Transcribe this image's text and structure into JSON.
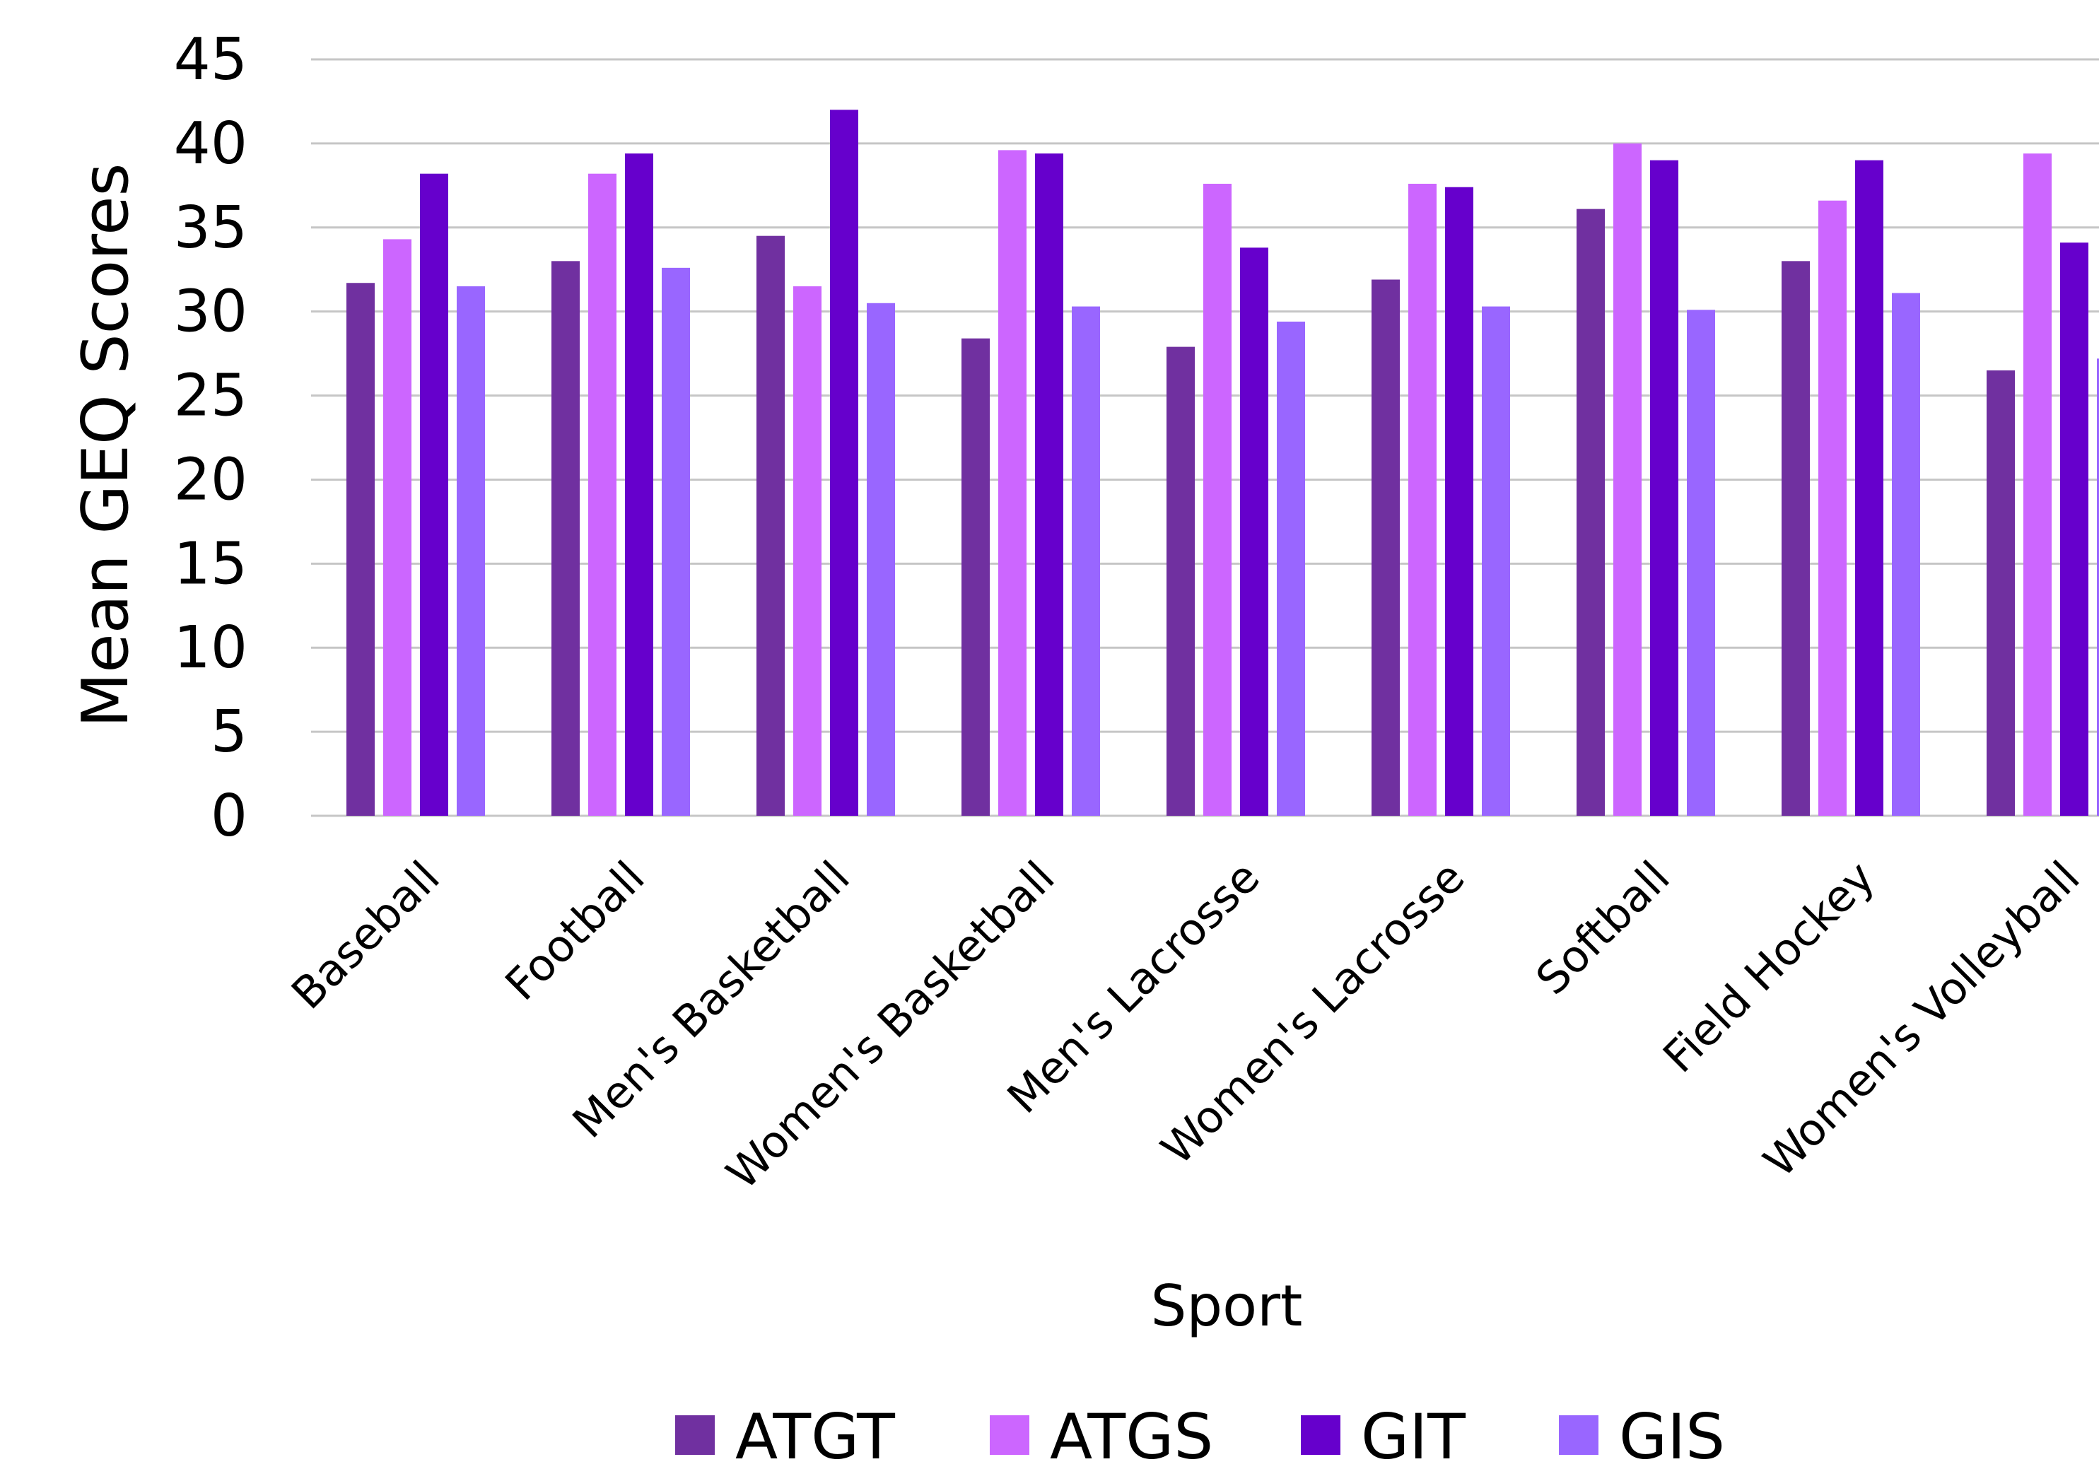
{
  "chart_data": {
    "type": "bar",
    "title": "",
    "xlabel": "Sport",
    "ylabel": "Mean GEQ Scores",
    "ylim": [
      0,
      45
    ],
    "yticks": [
      "0",
      "5",
      "10",
      "15",
      "20",
      "25",
      "30",
      "35",
      "40",
      "45"
    ],
    "grid": true,
    "legend_position": "bottom",
    "categories": [
      "Baseball",
      "Football",
      "Men's Basketball",
      "Women's Basketball",
      "Men's Lacrosse",
      "Women's Lacrosse",
      "Softball",
      "Field Hockey",
      "Women's Volleyball"
    ],
    "series": [
      {
        "name": "ATGT",
        "color": "#7030a0",
        "values": [
          31.7,
          33.0,
          34.5,
          28.4,
          27.9,
          31.9,
          36.1,
          33.0,
          26.5
        ]
      },
      {
        "name": "ATGS",
        "color": "#cc66ff",
        "values": [
          34.3,
          38.2,
          31.5,
          39.6,
          37.6,
          37.6,
          40.0,
          36.6,
          39.4
        ]
      },
      {
        "name": "GIT",
        "color": "#6600cc",
        "values": [
          38.2,
          39.4,
          42.0,
          39.4,
          33.8,
          37.4,
          39.0,
          39.0,
          34.1
        ]
      },
      {
        "name": "GIS",
        "color": "#9966ff",
        "values": [
          31.5,
          32.6,
          30.5,
          30.3,
          29.4,
          30.3,
          30.1,
          31.1,
          27.2
        ]
      }
    ]
  }
}
